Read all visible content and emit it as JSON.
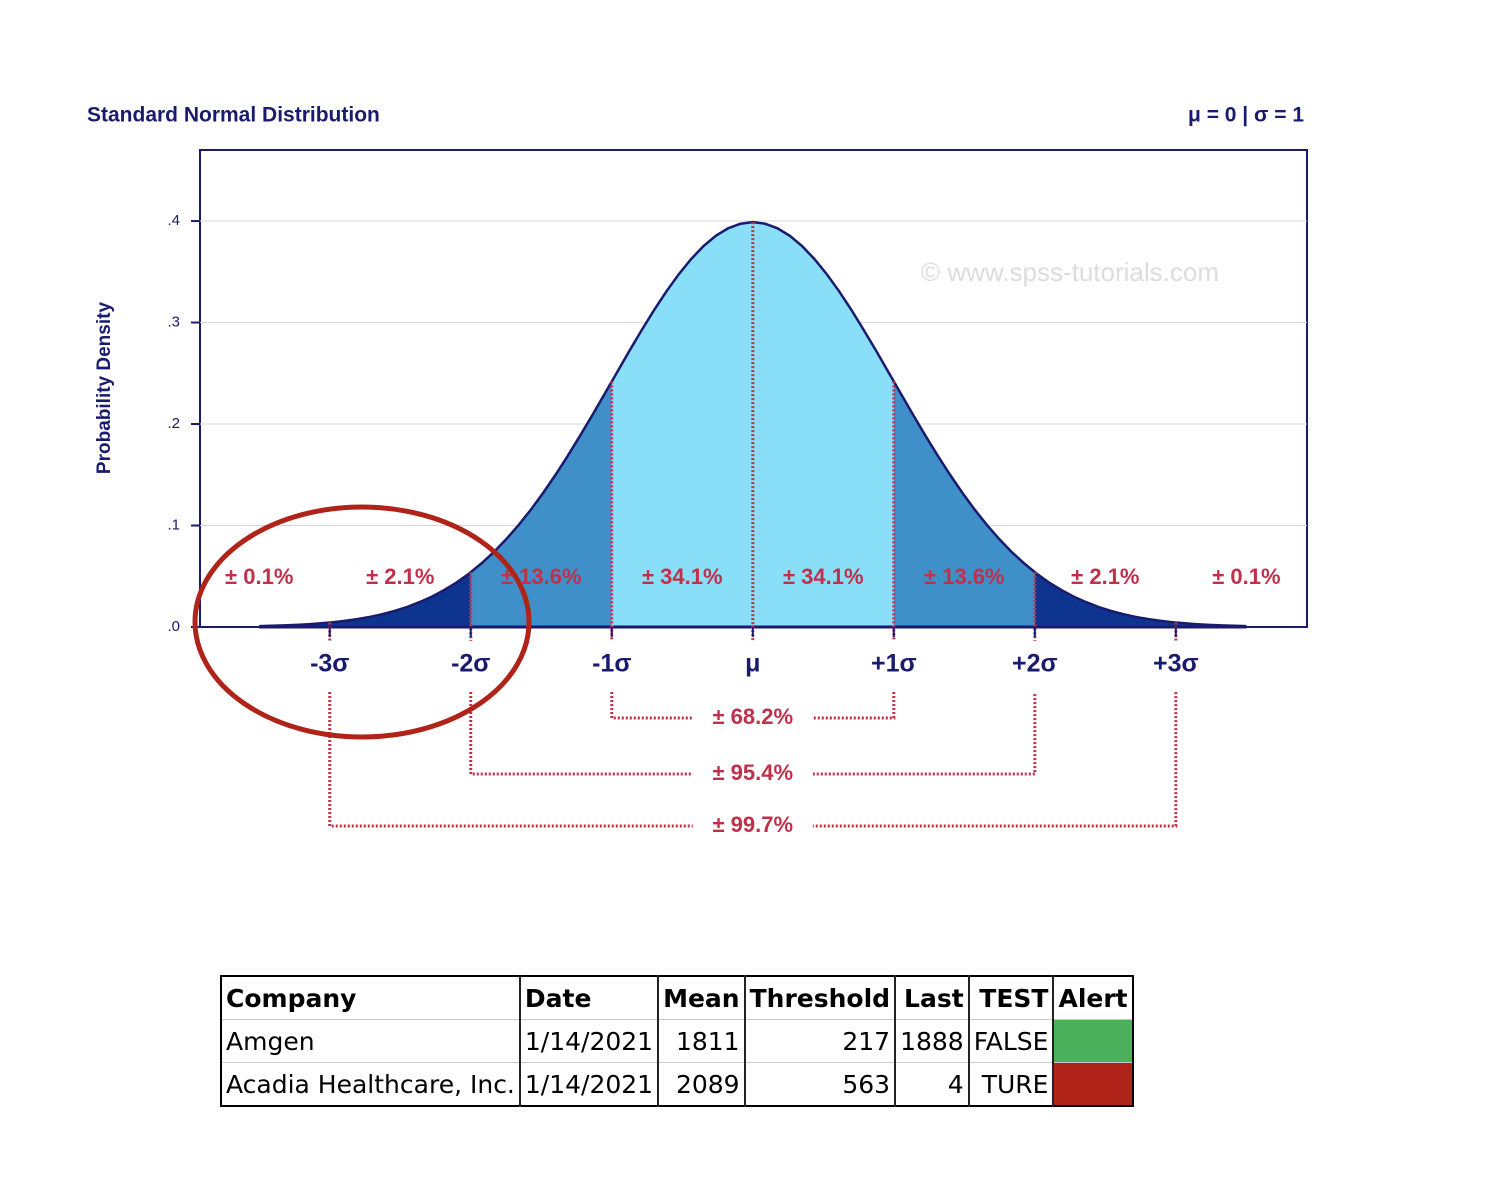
{
  "chart_data": {
    "type": "normal-curve",
    "title": "Standard Normal Distribution",
    "subtitle": "μ = 0 | σ = 1",
    "y_label": "Probability Density",
    "watermark": "© www.spss-tutorials.com",
    "mu": 0,
    "sigma": 1,
    "curve_range": [
      -3.5,
      3.5
    ],
    "line_color": "#1a1a6e",
    "xlim": [
      -3.92,
      3.93
    ],
    "ylim": [
      0,
      0.47
    ],
    "xticks": [
      {
        "value": -3,
        "label": "-3σ"
      },
      {
        "value": -2,
        "label": "-2σ"
      },
      {
        "value": -1,
        "label": "-1σ"
      },
      {
        "value": 0,
        "label": "μ"
      },
      {
        "value": 1,
        "label": "+1σ"
      },
      {
        "value": 2,
        "label": "+2σ"
      },
      {
        "value": 3,
        "label": "+3σ"
      }
    ],
    "yticks": [
      {
        "value": 0,
        "label": ".0"
      },
      {
        "value": 0.1,
        "label": ".1"
      },
      {
        "value": 0.2,
        "label": ".2"
      },
      {
        "value": 0.3,
        "label": ".3"
      },
      {
        "value": 0.4,
        "label": ".4"
      }
    ],
    "grid": true,
    "bands": [
      {
        "from": -3.5,
        "to": -2,
        "color": "#0d3590"
      },
      {
        "from": -2,
        "to": -1,
        "color": "#3f8fc8"
      },
      {
        "from": -1,
        "to": 1,
        "color": "#8adff8"
      },
      {
        "from": 1,
        "to": 2,
        "color": "#3f8fc8"
      },
      {
        "from": 2,
        "to": 3.5,
        "color": "#0d3590"
      }
    ],
    "region_labels": [
      {
        "at": -3.5,
        "label": "± 0.1%"
      },
      {
        "at": -2.5,
        "label": "± 2.1%"
      },
      {
        "at": -1.5,
        "label": "± 13.6%"
      },
      {
        "at": -0.5,
        "label": "± 34.1%"
      },
      {
        "at": 0.5,
        "label": "± 34.1%"
      },
      {
        "at": 1.5,
        "label": "± 13.6%"
      },
      {
        "at": 2.5,
        "label": "± 2.1%"
      },
      {
        "at": 3.5,
        "label": "± 0.1%"
      }
    ],
    "ranges": [
      {
        "from": -1,
        "to": 1,
        "label": "± 68.2%"
      },
      {
        "from": -2,
        "to": 2,
        "label": "± 95.4%"
      },
      {
        "from": -3,
        "to": 3,
        "label": "± 99.7%"
      }
    ],
    "annotation_color": "#c0304a"
  },
  "table": {
    "header": [
      "Company",
      "Date",
      "Mean",
      "Threshold",
      "Last",
      "TEST",
      "Alert"
    ],
    "rows": [
      [
        "Amgen",
        "1/14/2021",
        "1811",
        "217",
        "1888",
        "FALSE"
      ],
      [
        "Acadia Healthcare, Inc.",
        "1/14/2021",
        "2089",
        "563",
        "4",
        "TURE"
      ]
    ],
    "alert_colors": [
      "#4caf5c",
      "#b02318"
    ]
  }
}
